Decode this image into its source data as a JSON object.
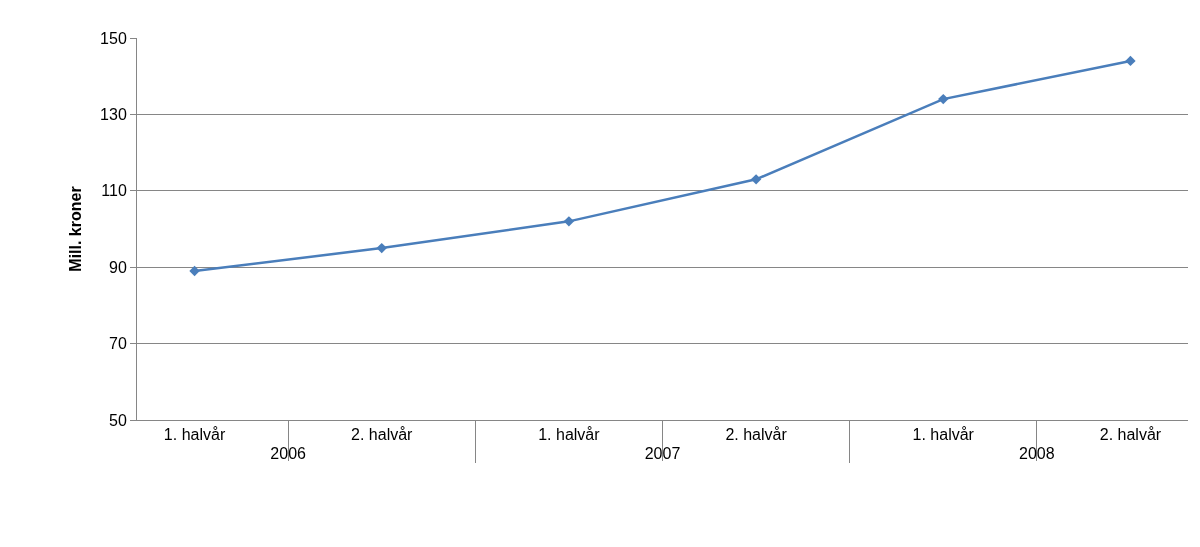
{
  "chart_data": {
    "type": "line",
    "ylabel": "Mill. kroner",
    "categories": [
      "1. halvår",
      "2. halvår",
      "1. halvår",
      "2. halvår",
      "1. halvår",
      "2. halvår"
    ],
    "annotations": [
      "2006",
      "2007",
      "2008"
    ],
    "series": [
      {
        "color": "#4a7ebb",
        "values": [
          89,
          95,
          102,
          113,
          134,
          144
        ]
      }
    ],
    "ylim": [
      50,
      150
    ],
    "yticks": [
      50,
      70,
      90,
      110,
      130,
      150
    ],
    "grid": "y",
    "marker": "diamond",
    "line_style": "solid",
    "legend": false
  }
}
